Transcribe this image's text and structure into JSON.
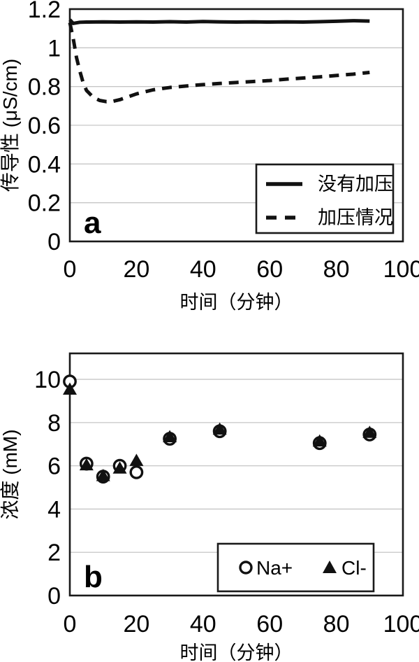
{
  "figure": {
    "background": "#ffffff",
    "text_color": "#000000",
    "grid_color": "#c6c6c6",
    "border_color": "#1a1a1a"
  },
  "chart_data": [
    {
      "id": "a",
      "type": "line",
      "panel_label": "a",
      "xlabel": "时间（分钟）",
      "ylabel": "传导性 (μS/cm)",
      "xlim": [
        0,
        100
      ],
      "ylim": [
        0,
        1.2
      ],
      "grid": "horizontal",
      "legend_position": "inside-lower-right",
      "xticks": [
        0,
        20,
        40,
        60,
        80,
        100
      ],
      "xtick_labels": [
        "0",
        "20",
        "40",
        "60",
        "80",
        "100"
      ],
      "yticks": [
        0,
        0.2,
        0.4,
        0.6,
        0.8,
        1,
        1.2
      ],
      "ytick_labels": [
        "0",
        "0.2",
        "0.4",
        "0.6",
        "0.8",
        "1",
        "1.2"
      ],
      "series": [
        {
          "name": "没有加压",
          "style": "solid",
          "x": [
            0,
            1,
            3,
            5,
            10,
            15,
            20,
            25,
            30,
            35,
            40,
            45,
            50,
            55,
            60,
            65,
            70,
            75,
            80,
            85,
            90
          ],
          "y": [
            1.145,
            1.126,
            1.132,
            1.133,
            1.134,
            1.133,
            1.134,
            1.133,
            1.135,
            1.133,
            1.136,
            1.134,
            1.133,
            1.134,
            1.133,
            1.134,
            1.133,
            1.135,
            1.137,
            1.14,
            1.138
          ]
        },
        {
          "name": "加压情况",
          "style": "dashed",
          "x": [
            0,
            1,
            2,
            3,
            4,
            5,
            7,
            9,
            11,
            13,
            15,
            18,
            20,
            25,
            30,
            35,
            40,
            45,
            50,
            55,
            60,
            65,
            70,
            75,
            80,
            85,
            90
          ],
          "y": [
            1.13,
            1.05,
            0.95,
            0.88,
            0.82,
            0.78,
            0.745,
            0.728,
            0.722,
            0.724,
            0.732,
            0.75,
            0.762,
            0.783,
            0.795,
            0.803,
            0.81,
            0.816,
            0.821,
            0.826,
            0.831,
            0.838,
            0.844,
            0.85,
            0.857,
            0.864,
            0.873
          ]
        }
      ]
    },
    {
      "id": "b",
      "type": "scatter",
      "panel_label": "b",
      "xlabel": "时间（分钟）",
      "ylabel": "浓度 (mM)",
      "xlim": [
        0,
        100
      ],
      "ylim": [
        0,
        11.2
      ],
      "grid": "horizontal",
      "legend_position": "inside-lower-right",
      "xticks": [
        0,
        20,
        40,
        60,
        80,
        100
      ],
      "xtick_labels": [
        "0",
        "20",
        "40",
        "60",
        "80",
        "100"
      ],
      "yticks": [
        0,
        2,
        4,
        6,
        8,
        10
      ],
      "ytick_labels": [
        "0",
        "2",
        "4",
        "6",
        "8",
        "10"
      ],
      "series": [
        {
          "name": "Na+",
          "marker": "open-circle",
          "x": [
            0,
            5,
            10,
            15,
            20,
            30,
            45,
            75,
            90
          ],
          "y": [
            9.9,
            6.1,
            5.5,
            6.0,
            5.7,
            7.25,
            7.6,
            7.05,
            7.45
          ]
        },
        {
          "name": "Cl-",
          "marker": "filled-triangle",
          "x": [
            0,
            5,
            10,
            15,
            20,
            30,
            45,
            75,
            90
          ],
          "y": [
            9.55,
            6.05,
            5.55,
            5.9,
            6.25,
            7.35,
            7.7,
            7.15,
            7.55
          ]
        }
      ]
    }
  ]
}
